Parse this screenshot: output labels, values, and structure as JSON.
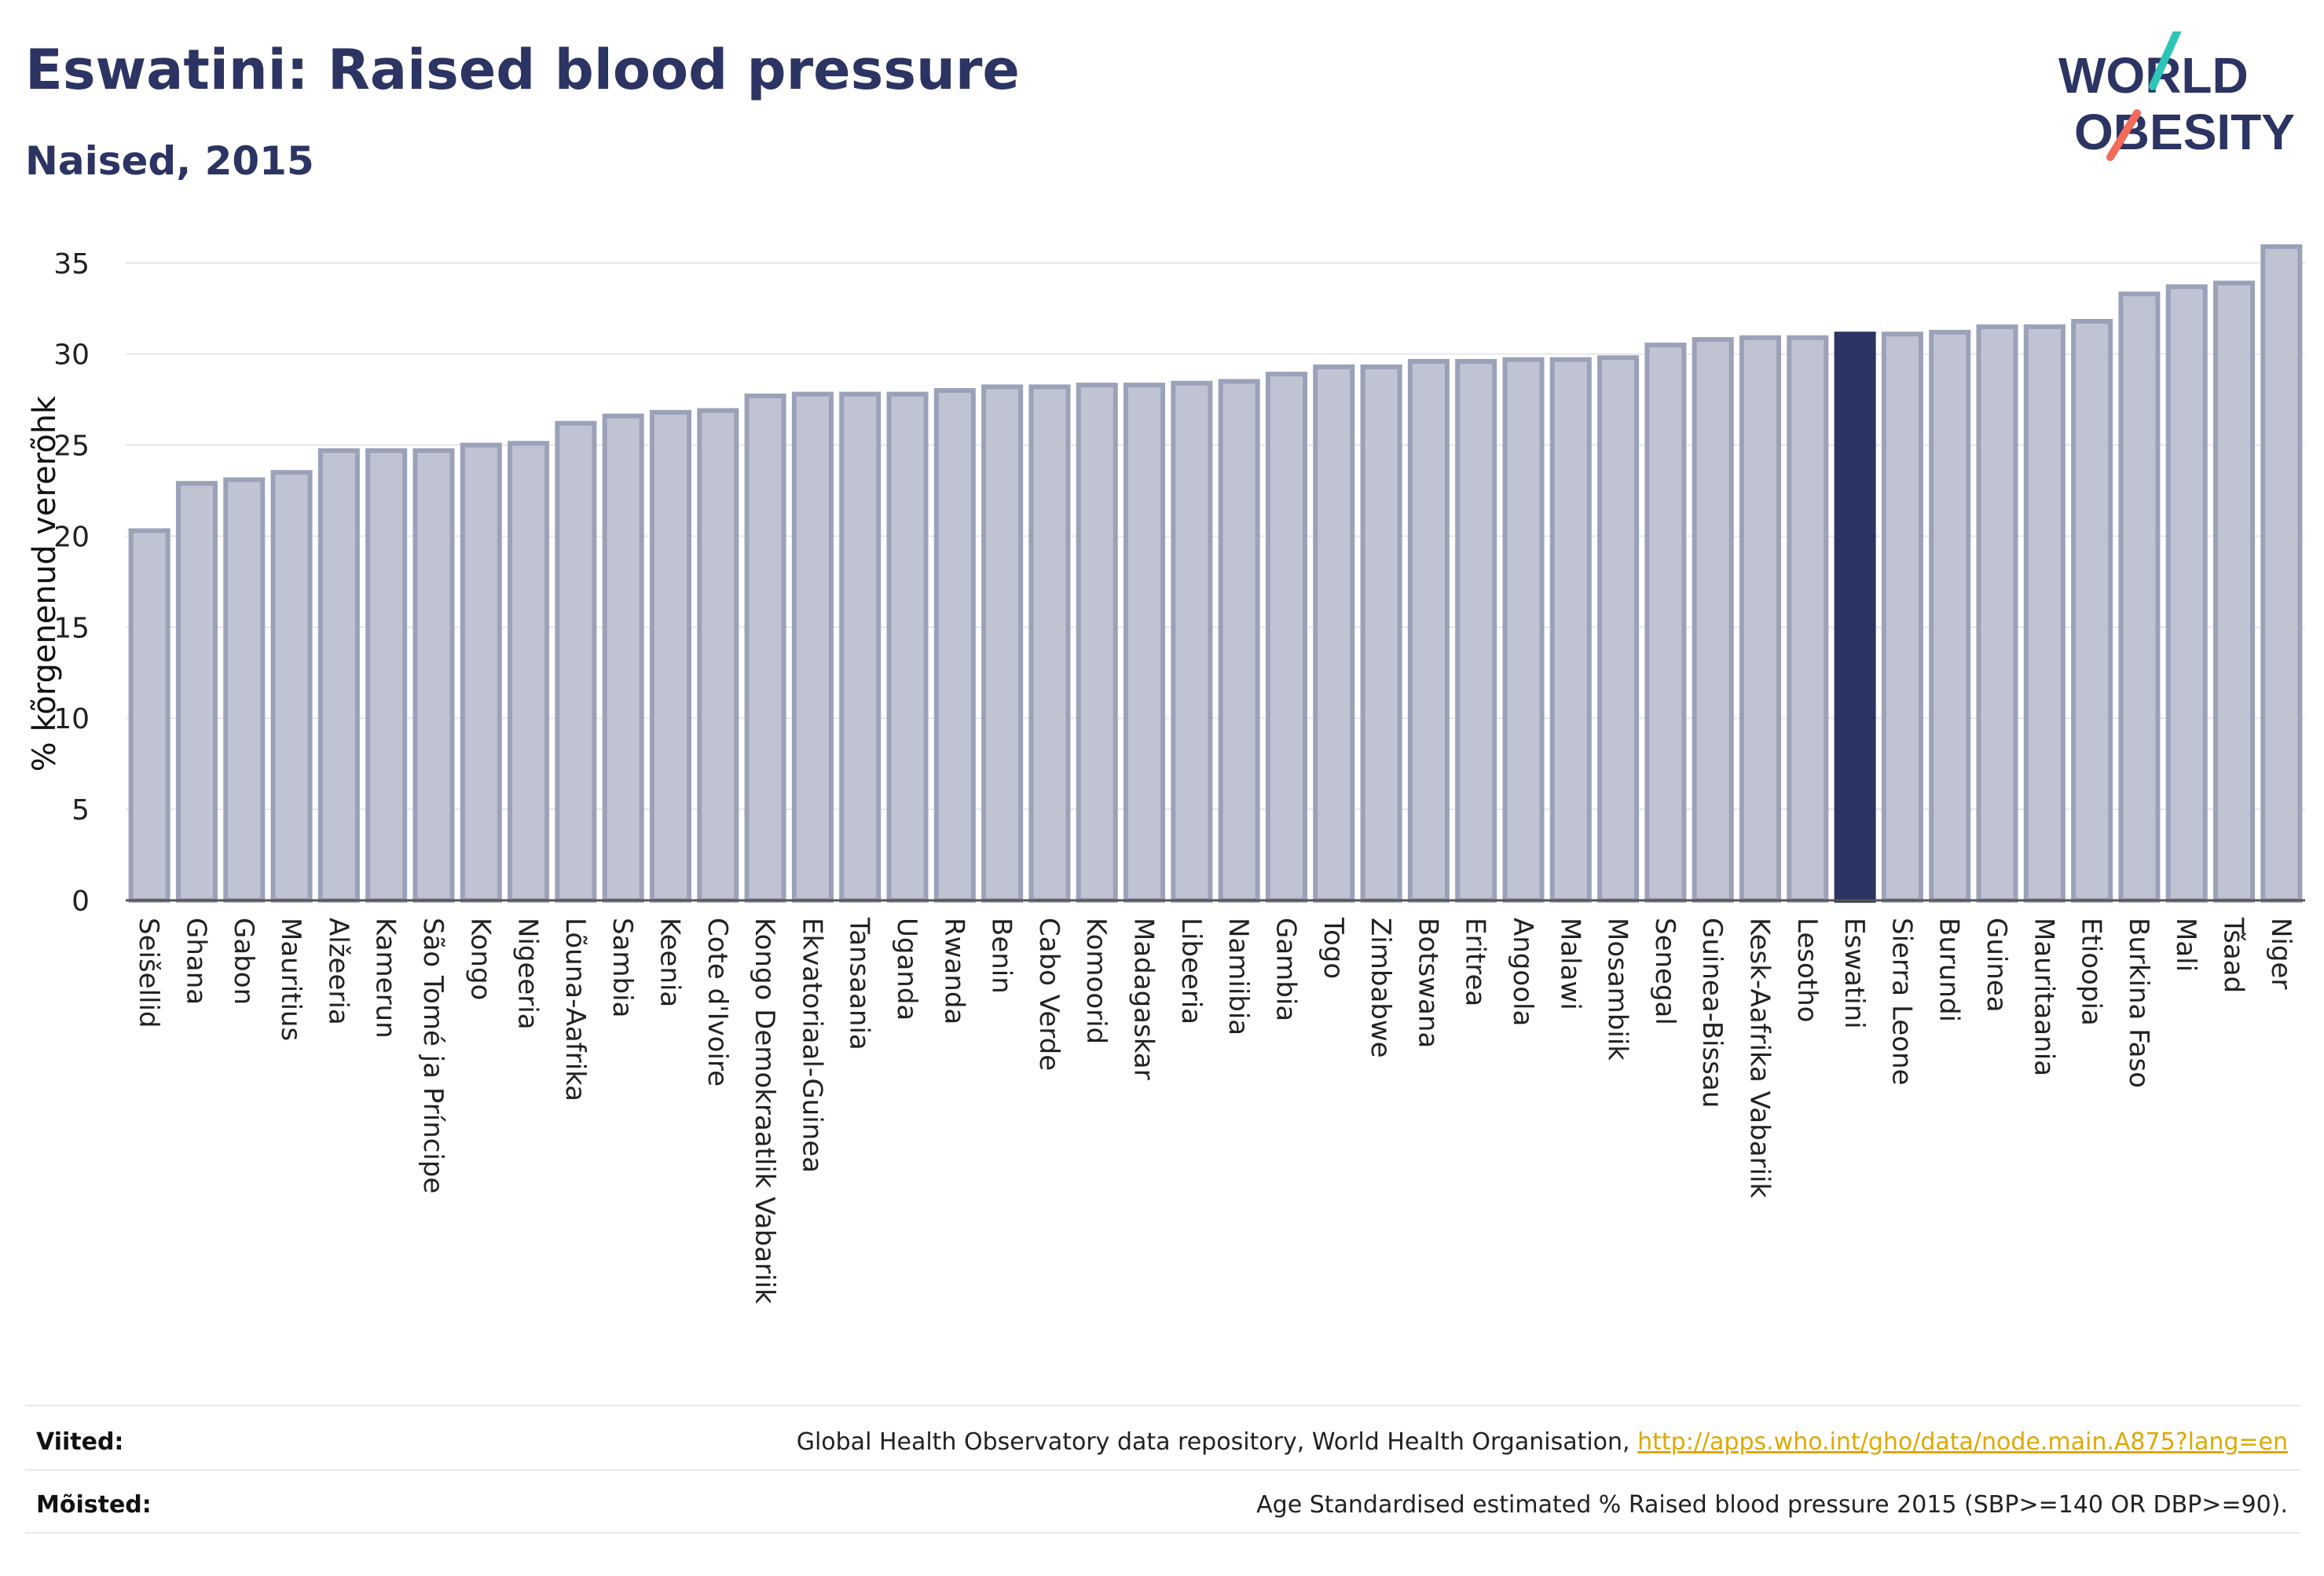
{
  "header": {
    "title": "Eswatini: Raised blood pressure",
    "subtitle": "Naised, 2015"
  },
  "logo": {
    "line1": "WORLD",
    "line2": "OBESITY",
    "colors": {
      "text": "#2b3462",
      "slash_teal": "#2ec4b6",
      "slash_coral": "#f26b5b"
    }
  },
  "colors": {
    "bar": "#c0c4d2",
    "bar_stroke": "#9ba1b8",
    "highlight": "#2b3462",
    "grid": "#e6e6ea",
    "axis": "#555555"
  },
  "chart_data": {
    "type": "bar",
    "ylabel": "% kõrgenenud vererõhk",
    "ylim": [
      0,
      36.5
    ],
    "yticks": [
      0,
      5,
      10,
      15,
      20,
      25,
      30,
      35
    ],
    "grid": true,
    "highlight": "Eswatini",
    "categories": [
      "Seišellid",
      "Ghana",
      "Gabon",
      "Mauritius",
      "Alžeeria",
      "Kamerun",
      "São Tomé ja Príncipe",
      "Kongo",
      "Nigeeria",
      "Lõuna-Aafrika",
      "Sambia",
      "Keenia",
      "Cote d'Ivoire",
      "Kongo Demokraatlik Vabariik",
      "Ekvatoriaal-Guinea",
      "Tansaania",
      "Uganda",
      "Rwanda",
      "Benin",
      "Cabo Verde",
      "Komoorid",
      "Madagaskar",
      "Libeeria",
      "Namiibia",
      "Gambia",
      "Togo",
      "Zimbabwe",
      "Botswana",
      "Eritrea",
      "Angoola",
      "Malawi",
      "Mosambiik",
      "Senegal",
      "Guinea-Bissau",
      "Kesk-Aafrika Vabariik",
      "Lesotho",
      "Eswatini",
      "Sierra Leone",
      "Burundi",
      "Guinea",
      "Mauritaania",
      "Etioopia",
      "Burkina Faso",
      "Mali",
      "Tšaad",
      "Niger"
    ],
    "values": [
      20.3,
      22.9,
      23.1,
      23.5,
      24.7,
      24.7,
      24.7,
      25.0,
      25.1,
      26.2,
      26.6,
      26.8,
      26.9,
      27.7,
      27.8,
      27.8,
      27.8,
      28.0,
      28.2,
      28.2,
      28.3,
      28.3,
      28.4,
      28.5,
      28.9,
      29.3,
      29.3,
      29.6,
      29.6,
      29.7,
      29.7,
      29.8,
      30.5,
      30.8,
      30.9,
      30.9,
      31.1,
      31.1,
      31.2,
      31.5,
      31.5,
      31.8,
      33.3,
      33.7,
      33.9,
      35.9
    ]
  },
  "footer": {
    "refs_label": "Viited:",
    "refs_text": "Global Health Observatory data repository, World Health Organisation,",
    "refs_link": "http://apps.who.int/gho/data/node.main.A875?lang=en",
    "defs_label": "Mõisted:",
    "defs_text": "Age Standardised estimated % Raised blood pressure 2015 (SBP>=140 OR DBP>=90)."
  }
}
